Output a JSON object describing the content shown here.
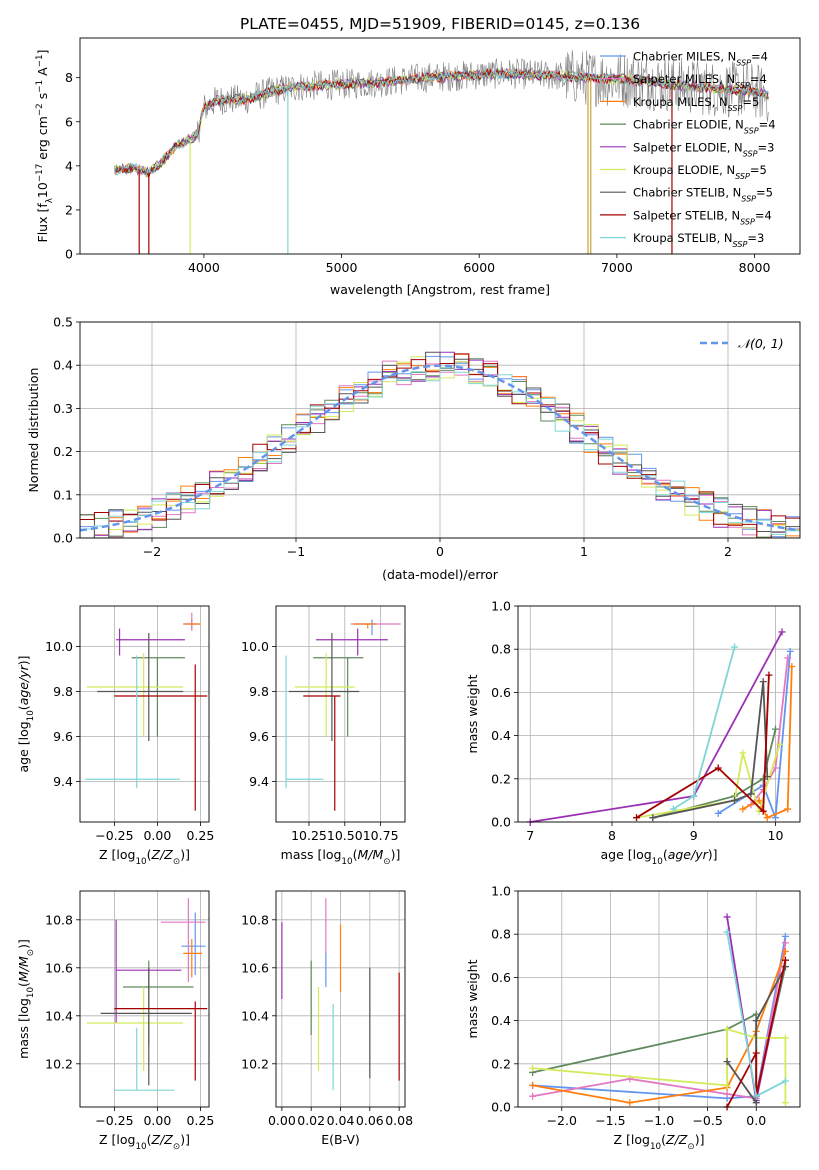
{
  "figure_title": "PLATE=0455, MJD=51909, FIBERID=0145, z=0.136",
  "series_colors": {
    "Chabrier MILES": "#6495ed",
    "Salpeter MILES": "#e377c2",
    "Kroupa MILES": "#ff7f0e",
    "Chabrier ELODIE": "#5f8a5f",
    "Salpeter ELODIE": "#9b30b4",
    "Kroupa ELODIE": "#d4ea5a",
    "Chabrier STELIB": "#555555",
    "Salpeter STELIB": "#a50000",
    "Kroupa STELIB": "#7fd6d6"
  },
  "chart_data": [
    {
      "id": "spectrum",
      "type": "line",
      "xlabel": "wavelength [Angstrom, rest frame]",
      "ylabel": "Flux [fλ10^-17 erg cm^-2 s^-1 A^-1]",
      "xlim": [
        3100,
        8330
      ],
      "ylim": [
        0,
        9.8
      ],
      "xticks": [
        4000,
        5000,
        6000,
        7000,
        8000
      ],
      "yticks": [
        0,
        2,
        4,
        6,
        8
      ],
      "legend_position": "right",
      "legend": [
        {
          "base": "Chabrier MILES, N",
          "sub": "SSP",
          "tail": "=4"
        },
        {
          "base": "Salpeter MILES, N",
          "sub": "SSP",
          "tail": "=4"
        },
        {
          "base": "Kroupa MILES, N",
          "sub": "SSP",
          "tail": "=5"
        },
        {
          "base": "Chabrier ELODIE, N",
          "sub": "SSP",
          "tail": "=4"
        },
        {
          "base": "Salpeter ELODIE, N",
          "sub": "SSP",
          "tail": "=3"
        },
        {
          "base": "Kroupa ELODIE, N",
          "sub": "SSP",
          "tail": "=5"
        },
        {
          "base": "Chabrier STELIB, N",
          "sub": "SSP",
          "tail": "=5"
        },
        {
          "base": "Salpeter STELIB, N",
          "sub": "SSP",
          "tail": "=4"
        },
        {
          "base": "Kroupa STELIB, N",
          "sub": "SSP",
          "tail": "=3"
        }
      ],
      "continuum": {
        "x": [
          3350,
          3500,
          3600,
          3700,
          3800,
          3900,
          3950,
          4000,
          4100,
          4300,
          4500,
          4700,
          5000,
          5300,
          5600,
          5900,
          6200,
          6500,
          6800,
          7100,
          7400,
          7700,
          8000,
          8100
        ],
        "y": [
          3.8,
          3.9,
          3.7,
          4.2,
          4.9,
          5.2,
          5.4,
          6.6,
          7.0,
          7.0,
          7.4,
          7.6,
          7.7,
          7.8,
          8.0,
          8.1,
          8.2,
          8.1,
          8.0,
          7.9,
          7.7,
          7.5,
          7.4,
          7.2
        ]
      },
      "spikes": [
        {
          "x": 3530,
          "y": 0
        },
        {
          "x": 3600,
          "y": 0
        },
        {
          "x": 3900,
          "y": 0
        },
        {
          "x": 4610,
          "y": 0
        },
        {
          "x": 6790,
          "y": 0
        },
        {
          "x": 6810,
          "y": 0
        },
        {
          "x": 7400,
          "y": 0
        }
      ]
    },
    {
      "id": "residuals",
      "type": "histogram",
      "xlabel": "(data-model)/error",
      "ylabel": "Normed distribution",
      "xlim": [
        -2.5,
        2.5
      ],
      "ylim": [
        0,
        0.5
      ],
      "xticks": [
        -2,
        -1,
        0,
        1,
        2
      ],
      "yticks": [
        0.0,
        0.1,
        0.2,
        0.3,
        0.4,
        0.5
      ],
      "grid": true,
      "bin_width": 0.1,
      "legend_label": "𝒩(0, 1)",
      "legend_position": "top-right",
      "reference_curve": "standard normal density"
    },
    {
      "id": "age_vs_Z",
      "type": "scatter-errorbar",
      "xlabel": "Z [log10(Z/Z⊙)]",
      "ylabel": "age  [log10(age/yr)]",
      "xlim": [
        -0.45,
        0.3
      ],
      "ylim": [
        9.22,
        10.18
      ],
      "xticks": [
        -0.25,
        0.0,
        0.25
      ],
      "yticks": [
        9.4,
        9.6,
        9.8,
        10.0
      ],
      "grid": true,
      "points": [
        {
          "series": "Chabrier MILES",
          "x": 0.2,
          "y": 10.1,
          "x_err": [
            0.05,
            0.03
          ],
          "y_err": [
            0.02,
            0.02
          ]
        },
        {
          "series": "Salpeter MILES",
          "x": 0.2,
          "y": 10.1,
          "x_err": [
            0.05,
            0.05
          ],
          "y_err": [
            0.03,
            0.05
          ]
        },
        {
          "series": "Kroupa MILES",
          "x": 0.22,
          "y": 10.1,
          "x_err": [
            0.06,
            0.03
          ],
          "y_err": [
            0.0,
            0.0
          ]
        },
        {
          "series": "Chabrier ELODIE",
          "x": 0.0,
          "y": 9.95,
          "x_err": [
            0.15,
            0.16
          ],
          "y_err": [
            0.35,
            0.0
          ]
        },
        {
          "series": "Salpeter ELODIE",
          "x": -0.22,
          "y": 10.03,
          "x_err": [
            0.02,
            0.38
          ],
          "y_err": [
            0.07,
            0.05
          ]
        },
        {
          "series": "Kroupa ELODIE",
          "x": -0.08,
          "y": 9.82,
          "x_err": [
            0.33,
            0.23
          ],
          "y_err": [
            0.22,
            0.15
          ]
        },
        {
          "series": "Chabrier STELIB",
          "x": -0.05,
          "y": 9.8,
          "x_err": [
            0.3,
            0.2
          ],
          "y_err": [
            0.22,
            0.26
          ]
        },
        {
          "series": "Salpeter STELIB",
          "x": 0.22,
          "y": 9.78,
          "x_err": [
            0.47,
            0.07
          ],
          "y_err": [
            0.51,
            0.14
          ]
        },
        {
          "series": "Kroupa STELIB",
          "x": -0.12,
          "y": 9.41,
          "x_err": [
            0.3,
            0.25
          ],
          "y_err": [
            0.04,
            0.55
          ]
        }
      ]
    },
    {
      "id": "age_vs_mass",
      "type": "scatter-errorbar",
      "xlabel": "mass [log10(M/M⊙)]",
      "ylabel": "",
      "xlim": [
        10.02,
        10.92
      ],
      "ylim": [
        9.22,
        10.18
      ],
      "xticks": [
        10.25,
        10.5,
        10.75
      ],
      "xticklabels": [
        "10.25",
        "10.50",
        "10.75"
      ],
      "yticks": [
        9.4,
        9.6,
        9.8,
        10.0
      ],
      "grid": true,
      "points": [
        {
          "series": "Chabrier MILES",
          "x": 10.69,
          "y": 10.1,
          "x_err": [
            0.12,
            0.03
          ],
          "y_err": [
            0.05,
            0.02
          ]
        },
        {
          "series": "Salpeter MILES",
          "x": 10.79,
          "y": 10.1,
          "x_err": [
            0.25,
            0.1
          ],
          "y_err": [
            0.0,
            0.0
          ]
        },
        {
          "series": "Kroupa MILES",
          "x": 10.66,
          "y": 10.1,
          "x_err": [
            0.1,
            0.06
          ],
          "y_err": [
            0.02,
            0.0
          ]
        },
        {
          "series": "Chabrier ELODIE",
          "x": 10.52,
          "y": 9.95,
          "x_err": [
            0.24,
            0.11
          ],
          "y_err": [
            0.35,
            0.0
          ]
        },
        {
          "series": "Salpeter ELODIE",
          "x": 10.59,
          "y": 10.03,
          "x_err": [
            0.29,
            0.21
          ],
          "y_err": [
            0.07,
            0.05
          ]
        },
        {
          "series": "Kroupa ELODIE",
          "x": 10.37,
          "y": 9.82,
          "x_err": [
            0.22,
            0.2
          ],
          "y_err": [
            0.22,
            0.15
          ]
        },
        {
          "series": "Chabrier STELIB",
          "x": 10.41,
          "y": 9.8,
          "x_err": [
            0.3,
            0.19
          ],
          "y_err": [
            0.22,
            0.26
          ]
        },
        {
          "series": "Salpeter STELIB",
          "x": 10.43,
          "y": 9.78,
          "x_err": [
            0.22,
            0.04
          ],
          "y_err": [
            0.51,
            0.0
          ]
        },
        {
          "series": "Kroupa STELIB",
          "x": 10.09,
          "y": 9.41,
          "x_err": [
            0.0,
            0.26
          ],
          "y_err": [
            0.04,
            0.55
          ]
        }
      ]
    },
    {
      "id": "mass_weight_vs_age",
      "type": "line",
      "xlabel": "age  [log10(age/yr)]",
      "ylabel": "mass weight",
      "xlim": [
        6.85,
        10.3
      ],
      "ylim": [
        0,
        1.0
      ],
      "xticks": [
        7,
        8,
        9,
        10
      ],
      "yticks": [
        0.0,
        0.2,
        0.4,
        0.6,
        0.8,
        1.0
      ],
      "grid": true,
      "series": [
        {
          "name": "Chabrier MILES",
          "x": [
            9.3,
            9.85,
            10.0,
            10.18
          ],
          "y": [
            0.04,
            0.17,
            0.02,
            0.79
          ]
        },
        {
          "name": "Salpeter MILES",
          "x": [
            9.7,
            9.85,
            10.0,
            10.15
          ],
          "y": [
            0.08,
            0.15,
            0.25,
            0.76
          ]
        },
        {
          "name": "Kroupa MILES",
          "x": [
            9.6,
            9.8,
            9.9,
            10.15,
            10.2
          ],
          "y": [
            0.06,
            0.1,
            0.02,
            0.06,
            0.72
          ]
        },
        {
          "name": "Chabrier ELODIE",
          "x": [
            8.5,
            9.5,
            9.85,
            10.0
          ],
          "y": [
            0.02,
            0.12,
            0.2,
            0.43
          ]
        },
        {
          "name": "Salpeter ELODIE",
          "x": [
            7.0,
            9.0,
            10.08
          ],
          "y": [
            0.0,
            0.12,
            0.88
          ]
        },
        {
          "name": "Kroupa ELODIE",
          "x": [
            8.3,
            9.5,
            9.6,
            9.8,
            10.05
          ],
          "y": [
            0.02,
            0.1,
            0.32,
            0.05,
            0.36
          ]
        },
        {
          "name": "Chabrier STELIB",
          "x": [
            8.5,
            9.5,
            9.7,
            9.85,
            9.9
          ],
          "y": [
            0.02,
            0.1,
            0.13,
            0.65,
            0.21
          ]
        },
        {
          "name": "Salpeter STELIB",
          "x": [
            8.3,
            9.3,
            9.85,
            9.92
          ],
          "y": [
            0.02,
            0.25,
            0.05,
            0.68
          ]
        },
        {
          "name": "Kroupa STELIB",
          "x": [
            8.75,
            9.0,
            9.5
          ],
          "y": [
            0.06,
            0.12,
            0.81
          ]
        }
      ]
    },
    {
      "id": "mass_vs_Z",
      "type": "scatter-errorbar",
      "xlabel": "Z [log10(Z/Z⊙)]",
      "ylabel": "mass [log10(M/M⊙)]",
      "xlim": [
        -0.45,
        0.3
      ],
      "ylim": [
        10.02,
        10.92
      ],
      "xticks": [
        -0.25,
        0.0,
        0.25
      ],
      "yticks": [
        10.2,
        10.4,
        10.6,
        10.8
      ],
      "grid": true,
      "points": [
        {
          "series": "Chabrier MILES",
          "x": 0.22,
          "y": 10.69,
          "x_err": [
            0.08,
            0.06
          ],
          "y_err": [
            0.12,
            0.14
          ]
        },
        {
          "series": "Salpeter MILES",
          "x": 0.18,
          "y": 10.79,
          "x_err": [
            0.16,
            0.1
          ],
          "y_err": [
            0.25,
            0.1
          ]
        },
        {
          "series": "Kroupa MILES",
          "x": 0.2,
          "y": 10.66,
          "x_err": [
            0.05,
            0.06
          ],
          "y_err": [
            0.1,
            0.06
          ]
        },
        {
          "series": "Chabrier ELODIE",
          "x": -0.05,
          "y": 10.52,
          "x_err": [
            0.15,
            0.26
          ],
          "y_err": [
            0.24,
            0.11
          ]
        },
        {
          "series": "Salpeter ELODIE",
          "x": -0.24,
          "y": 10.59,
          "x_err": [
            0.0,
            0.38
          ],
          "y_err": [
            0.22,
            0.21
          ]
        },
        {
          "series": "Kroupa ELODIE",
          "x": -0.08,
          "y": 10.37,
          "x_err": [
            0.33,
            0.23
          ],
          "y_err": [
            0.2,
            0.15
          ]
        },
        {
          "series": "Chabrier STELIB",
          "x": -0.05,
          "y": 10.41,
          "x_err": [
            0.28,
            0.25
          ],
          "y_err": [
            0.3,
            0.19
          ]
        },
        {
          "series": "Salpeter STELIB",
          "x": 0.22,
          "y": 10.43,
          "x_err": [
            0.47,
            0.07
          ],
          "y_err": [
            0.3,
            0.03
          ]
        },
        {
          "series": "Kroupa STELIB",
          "x": -0.12,
          "y": 10.09,
          "x_err": [
            0.13,
            0.22
          ],
          "y_err": [
            0.0,
            0.26
          ]
        }
      ]
    },
    {
      "id": "mass_vs_ebv",
      "type": "scatter-errorbar",
      "xlabel": "E(B-V)",
      "ylabel": "",
      "xlim": [
        -0.004,
        0.084
      ],
      "ylim": [
        10.02,
        10.92
      ],
      "xticks": [
        0.0,
        0.02,
        0.04,
        0.06,
        0.08
      ],
      "xticklabels": [
        "0.00",
        "0.02",
        "0.04",
        "0.06",
        "0.08"
      ],
      "yticks": [
        10.2,
        10.4,
        10.6,
        10.8
      ],
      "grid": true,
      "points": [
        {
          "series": "Chabrier MILES",
          "x": 0.03,
          "y": 10.62,
          "y_err": [
            0.1,
            0.05
          ]
        },
        {
          "series": "Salpeter MILES",
          "x": 0.03,
          "y": 10.79,
          "y_err": [
            0.13,
            0.1
          ]
        },
        {
          "series": "Kroupa MILES",
          "x": 0.04,
          "y": 10.66,
          "y_err": [
            0.16,
            0.12
          ]
        },
        {
          "series": "Chabrier ELODIE",
          "x": 0.02,
          "y": 10.52,
          "y_err": [
            0.2,
            0.11
          ]
        },
        {
          "series": "Salpeter ELODIE",
          "x": 0.0,
          "y": 10.59,
          "y_err": [
            0.12,
            0.2
          ]
        },
        {
          "series": "Kroupa ELODIE",
          "x": 0.025,
          "y": 10.37,
          "y_err": [
            0.2,
            0.15
          ]
        },
        {
          "series": "Chabrier STELIB",
          "x": 0.06,
          "y": 10.41,
          "y_err": [
            0.27,
            0.19
          ]
        },
        {
          "series": "Salpeter STELIB",
          "x": 0.08,
          "y": 10.35,
          "y_err": [
            0.22,
            0.23
          ]
        },
        {
          "series": "Kroupa STELIB",
          "x": 0.035,
          "y": 10.28,
          "y_err": [
            0.19,
            0.17
          ]
        }
      ]
    },
    {
      "id": "mass_weight_vs_Z",
      "type": "line",
      "xlabel": "Z [log10(Z/Z⊙)]",
      "ylabel": "mass weight",
      "xlim": [
        -2.45,
        0.45
      ],
      "ylim": [
        0,
        1.0
      ],
      "xticks": [
        -2.0,
        -1.5,
        -1.0,
        -0.5,
        0.0
      ],
      "yticks": [
        0.0,
        0.2,
        0.4,
        0.6,
        0.8,
        1.0
      ],
      "grid": true,
      "series": [
        {
          "name": "Chabrier MILES",
          "x": [
            -2.3,
            -0.3,
            0.0,
            0.3
          ],
          "y": [
            0.1,
            0.04,
            0.05,
            0.79
          ]
        },
        {
          "name": "Salpeter MILES",
          "x": [
            -2.3,
            -1.3,
            -0.3,
            0.0,
            0.3
          ],
          "y": [
            0.05,
            0.13,
            0.06,
            0.04,
            0.76
          ]
        },
        {
          "name": "Kroupa MILES",
          "x": [
            -2.3,
            -1.3,
            -0.3,
            0.0,
            0.3
          ],
          "y": [
            0.1,
            0.02,
            0.09,
            0.35,
            0.72
          ]
        },
        {
          "name": "Chabrier ELODIE",
          "x": [
            -2.3,
            -0.3,
            0.0,
            0.0,
            0.3
          ],
          "y": [
            0.16,
            0.36,
            0.43,
            0.05,
            0.65
          ]
        },
        {
          "name": "Salpeter ELODIE",
          "x": [
            -0.3,
            0.0,
            0.3
          ],
          "y": [
            0.88,
            0.03,
            0.68
          ]
        },
        {
          "name": "Kroupa ELODIE",
          "x": [
            -2.3,
            -0.3,
            -0.3,
            0.0,
            0.3,
            0.3
          ],
          "y": [
            0.18,
            0.1,
            0.36,
            0.32,
            0.32,
            0.02
          ]
        },
        {
          "name": "Chabrier STELIB",
          "x": [
            -0.3,
            0.0,
            0.0,
            0.3
          ],
          "y": [
            0.21,
            0.02,
            0.4,
            0.65
          ]
        },
        {
          "name": "Salpeter STELIB",
          "x": [
            -0.3,
            0.0,
            0.0,
            0.3
          ],
          "y": [
            0.0,
            0.25,
            0.05,
            0.68
          ]
        },
        {
          "name": "Kroupa STELIB",
          "x": [
            -0.3,
            0.0,
            0.3
          ],
          "y": [
            0.81,
            0.05,
            0.12
          ]
        }
      ]
    }
  ]
}
